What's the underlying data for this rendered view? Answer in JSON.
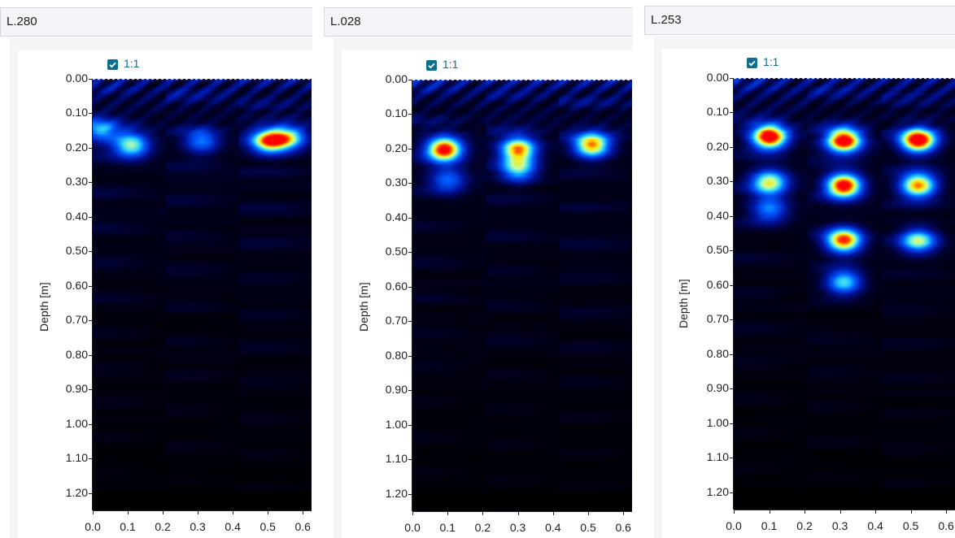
{
  "panels": [
    {
      "title": "L.280",
      "ratio_label": "1:1",
      "ratio_checked": true,
      "y_axis_label": "Depth [m]",
      "y_ticks": [
        "0.00",
        "0.10",
        "0.20",
        "0.30",
        "0.40",
        "0.50",
        "0.60",
        "0.70",
        "0.80",
        "0.90",
        "1.00",
        "1.10",
        "1.20"
      ],
      "x_ticks": [
        "0.0",
        "0.1",
        "0.2",
        "0.3",
        "0.4",
        "0.5",
        "0.6"
      ],
      "reflections": [
        {
          "x": 0.02,
          "depth": 0.15,
          "intensity": 0.45
        },
        {
          "x": 0.11,
          "depth": 0.19,
          "intensity": 0.65
        },
        {
          "x": 0.31,
          "depth": 0.18,
          "intensity": 0.45
        },
        {
          "x": 0.5,
          "depth": 0.18,
          "intensity": 0.75
        },
        {
          "x": 0.56,
          "depth": 0.17,
          "intensity": 0.55
        }
      ]
    },
    {
      "title": "L.028",
      "ratio_label": "1:1",
      "ratio_checked": true,
      "y_axis_label": "Depth [m]",
      "y_ticks": [
        "0.00",
        "0.10",
        "0.20",
        "0.30",
        "0.40",
        "0.50",
        "0.60",
        "0.70",
        "0.80",
        "0.90",
        "1.00",
        "1.10",
        "1.20"
      ],
      "x_ticks": [
        "0.0",
        "0.1",
        "0.2",
        "0.3",
        "0.4",
        "0.5",
        "0.6"
      ],
      "reflections": [
        {
          "x": 0.09,
          "depth": 0.2,
          "intensity": 0.95
        },
        {
          "x": 0.3,
          "depth": 0.2,
          "intensity": 0.8
        },
        {
          "x": 0.3,
          "depth": 0.26,
          "intensity": 0.55
        },
        {
          "x": 0.51,
          "depth": 0.19,
          "intensity": 0.82
        },
        {
          "x": 0.1,
          "depth": 0.29,
          "intensity": 0.4
        }
      ]
    },
    {
      "title": "L.253",
      "ratio_label": "1:1",
      "ratio_checked": true,
      "y_axis_label": "Depth [m]",
      "y_ticks": [
        "0.00",
        "0.10",
        "0.20",
        "0.30",
        "0.40",
        "0.50",
        "0.60",
        "0.70",
        "0.80",
        "0.90",
        "1.00",
        "1.10",
        "1.20"
      ],
      "x_ticks": [
        "0.0",
        "0.1",
        "0.2",
        "0.3",
        "0.4",
        "0.5",
        "0.6"
      ],
      "reflections": [
        {
          "x": 0.1,
          "depth": 0.17,
          "intensity": 1.0
        },
        {
          "x": 0.31,
          "depth": 0.18,
          "intensity": 1.0
        },
        {
          "x": 0.52,
          "depth": 0.18,
          "intensity": 1.0
        },
        {
          "x": 0.31,
          "depth": 0.31,
          "intensity": 1.0
        },
        {
          "x": 0.52,
          "depth": 0.31,
          "intensity": 0.85
        },
        {
          "x": 0.1,
          "depth": 0.3,
          "intensity": 0.7
        },
        {
          "x": 0.31,
          "depth": 0.47,
          "intensity": 0.9
        },
        {
          "x": 0.52,
          "depth": 0.47,
          "intensity": 0.65
        },
        {
          "x": 0.31,
          "depth": 0.59,
          "intensity": 0.6
        },
        {
          "x": 0.1,
          "depth": 0.38,
          "intensity": 0.45
        }
      ]
    }
  ]
}
